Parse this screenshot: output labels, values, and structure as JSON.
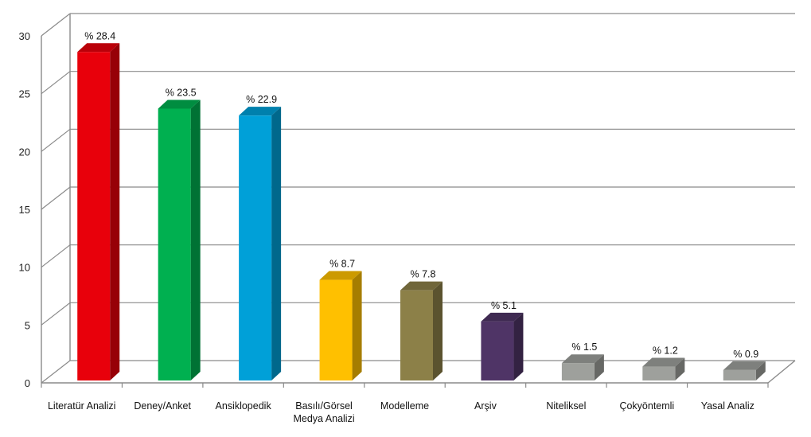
{
  "chart_data": {
    "type": "bar",
    "title": "",
    "xlabel": "",
    "ylabel": "",
    "ylim": [
      0,
      30
    ],
    "yticks": [
      0,
      5,
      10,
      15,
      20,
      25,
      30
    ],
    "grid": true,
    "style": "3d",
    "categories": [
      [
        "Literatür Analizi"
      ],
      [
        "Deney/Anket"
      ],
      [
        "Ansiklopedik"
      ],
      [
        "Basılı/Görsel",
        "Medya Analizi"
      ],
      [
        "Modelleme"
      ],
      [
        "Arşiv"
      ],
      [
        "Niteliksel"
      ],
      [
        "Çokyöntemli"
      ],
      [
        "Yasal Analiz"
      ]
    ],
    "values": [
      28.4,
      23.5,
      22.9,
      8.7,
      7.8,
      5.1,
      1.5,
      1.2,
      0.9
    ],
    "data_labels": [
      "% 28.4",
      "% 23.5",
      "% 22.9",
      "% 8.7",
      "% 7.8",
      "% 5.1",
      "% 1.5",
      "% 1.2",
      "% 0.9"
    ],
    "colors": [
      "#e8000b",
      "#00b050",
      "#00a0d8",
      "#ffc000",
      "#8c8048",
      "#4f3466",
      "#9ea09c",
      "#9ea09c",
      "#9ea09c"
    ]
  }
}
